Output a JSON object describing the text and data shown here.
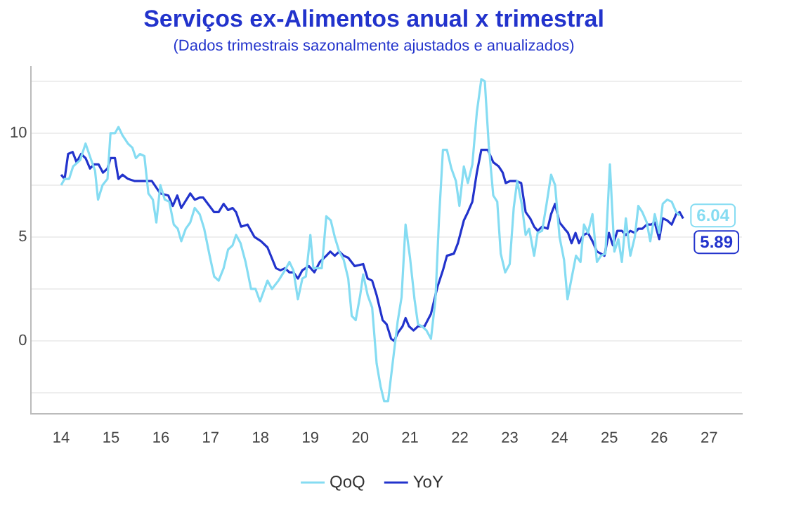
{
  "chart_data": {
    "type": "line",
    "title": "Serviços ex-Alimentos anual x trimestral",
    "subtitle": "(Dados trimestrais sazonalmente ajustados e anualizados)",
    "xlim": [
      13.4,
      27.66
    ],
    "xticks": [
      14,
      15,
      16,
      17,
      18,
      19,
      20,
      21,
      22,
      23,
      24,
      25,
      26,
      27
    ],
    "ylim": [
      -3.5,
      13.2
    ],
    "yticks": [
      {
        "value": -2.5,
        "label": null
      },
      0,
      {
        "value": 2.5,
        "label": null
      },
      5,
      {
        "value": 7.5,
        "label": null
      },
      10,
      {
        "value": 12.5,
        "label": null
      }
    ],
    "grid": "y",
    "legend": "bottom",
    "marker": "none",
    "line_style": "solid",
    "annotations": [
      {
        "text": "6.04",
        "x": 26.41,
        "y": 6.04
      },
      {
        "text": "5.89",
        "x": 26.48,
        "y": 5.89
      }
    ],
    "series": [
      {
        "name": "QoQ",
        "color": "#85dcf2",
        "x": [
          14.0,
          14.07,
          14.16,
          14.24,
          14.38,
          14.49,
          14.59,
          14.68,
          14.74,
          14.83,
          14.93,
          14.99,
          15.08,
          15.15,
          15.23,
          15.34,
          15.43,
          15.5,
          15.58,
          15.67,
          15.75,
          15.84,
          15.91,
          15.99,
          16.08,
          16.17,
          16.26,
          16.34,
          16.41,
          16.5,
          16.59,
          16.68,
          16.78,
          16.87,
          16.98,
          17.07,
          17.16,
          17.26,
          17.35,
          17.44,
          17.51,
          17.6,
          17.7,
          17.81,
          17.9,
          17.99,
          18.14,
          18.23,
          18.36,
          18.49,
          18.58,
          18.66,
          18.75,
          18.84,
          18.91,
          19.0,
          19.06,
          19.14,
          19.23,
          19.32,
          19.41,
          19.49,
          19.58,
          19.67,
          19.76,
          19.83,
          19.91,
          20.0,
          20.06,
          20.15,
          20.24,
          20.33,
          20.41,
          20.48,
          20.56,
          20.65,
          20.75,
          20.83,
          20.91,
          21.0,
          21.09,
          21.16,
          21.24,
          21.33,
          21.42,
          21.51,
          21.58,
          21.66,
          21.74,
          21.83,
          21.92,
          21.99,
          22.08,
          22.16,
          22.25,
          22.34,
          22.43,
          22.5,
          22.58,
          22.67,
          22.75,
          22.82,
          22.91,
          23.0,
          23.08,
          23.15,
          23.24,
          23.32,
          23.39,
          23.49,
          23.56,
          23.65,
          23.74,
          23.83,
          23.91,
          24.0,
          24.09,
          24.16,
          24.24,
          24.33,
          24.42,
          24.49,
          24.57,
          24.66,
          24.75,
          24.83,
          24.92,
          25.01,
          25.1,
          25.18,
          25.25,
          25.33,
          25.42,
          25.51,
          25.58,
          25.66,
          25.75,
          25.82,
          25.91,
          26.0,
          26.07,
          26.16,
          26.25,
          26.34,
          26.41
        ],
        "values": [
          7.5,
          7.8,
          7.8,
          8.4,
          8.7,
          9.5,
          8.8,
          8.2,
          6.8,
          7.5,
          7.8,
          10.0,
          10.0,
          10.3,
          9.9,
          9.5,
          9.3,
          8.8,
          9.0,
          8.9,
          7.1,
          6.8,
          5.7,
          7.5,
          6.8,
          6.7,
          5.6,
          5.4,
          4.8,
          5.4,
          5.7,
          6.4,
          6.1,
          5.4,
          4.1,
          3.1,
          2.9,
          3.5,
          4.4,
          4.6,
          5.1,
          4.7,
          3.8,
          2.5,
          2.5,
          1.9,
          2.9,
          2.5,
          2.9,
          3.4,
          3.8,
          3.4,
          2.0,
          3.0,
          3.1,
          5.1,
          3.5,
          3.5,
          3.5,
          6.0,
          5.8,
          5.0,
          4.3,
          3.9,
          3.0,
          1.2,
          1.0,
          2.2,
          3.2,
          2.2,
          1.6,
          -1.1,
          -2.2,
          -2.9,
          -2.9,
          -1.1,
          0.9,
          2.1,
          5.6,
          4.0,
          2.0,
          0.8,
          0.7,
          0.5,
          0.1,
          2.0,
          5.8,
          9.2,
          9.2,
          8.3,
          7.7,
          6.5,
          8.4,
          7.6,
          8.5,
          11.0,
          12.6,
          12.5,
          9.4,
          7.0,
          6.7,
          4.2,
          3.3,
          3.7,
          6.4,
          7.7,
          6.6,
          5.1,
          5.4,
          4.1,
          5.2,
          5.3,
          6.6,
          8.0,
          7.5,
          5.0,
          3.9,
          2.0,
          3.0,
          4.1,
          3.8,
          5.6,
          5.2,
          6.1,
          3.8,
          4.1,
          4.2,
          8.5,
          4.3,
          4.9,
          3.8,
          5.9,
          4.1,
          5.0,
          6.5,
          6.2,
          5.7,
          4.8,
          6.1,
          5.2,
          6.6,
          6.8,
          6.7,
          6.2,
          6.04
        ]
      },
      {
        "name": "YoY",
        "color": "#2233cc",
        "x": [
          14.0,
          14.07,
          14.14,
          14.23,
          14.31,
          14.4,
          14.49,
          14.58,
          14.66,
          14.75,
          14.84,
          14.93,
          14.99,
          15.08,
          15.15,
          15.23,
          15.34,
          15.47,
          15.82,
          15.99,
          16.15,
          16.24,
          16.33,
          16.41,
          16.59,
          16.68,
          16.78,
          16.85,
          17.07,
          17.16,
          17.26,
          17.35,
          17.44,
          17.51,
          17.61,
          17.74,
          17.88,
          18.01,
          18.14,
          18.31,
          18.4,
          18.49,
          18.58,
          18.66,
          18.75,
          18.84,
          18.97,
          19.08,
          19.19,
          19.32,
          19.4,
          19.49,
          19.58,
          19.67,
          19.76,
          19.89,
          20.06,
          20.15,
          20.24,
          20.33,
          20.45,
          20.53,
          20.62,
          20.68,
          20.76,
          20.85,
          20.91,
          20.98,
          21.07,
          21.16,
          21.29,
          21.42,
          21.55,
          21.66,
          21.74,
          21.88,
          21.96,
          22.08,
          22.16,
          22.25,
          22.34,
          22.43,
          22.56,
          22.67,
          22.78,
          22.86,
          22.92,
          23.01,
          23.13,
          23.23,
          23.32,
          23.41,
          23.49,
          23.56,
          23.65,
          23.76,
          23.83,
          23.91,
          24.0,
          24.1,
          24.17,
          24.24,
          24.32,
          24.39,
          24.48,
          24.57,
          24.66,
          24.75,
          24.83,
          24.9,
          24.99,
          25.07,
          25.16,
          25.25,
          25.33,
          25.42,
          25.51,
          25.58,
          25.66,
          25.75,
          25.84,
          25.91,
          26.0,
          26.07,
          26.16,
          26.25,
          26.34,
          26.41,
          26.48
        ],
        "values": [
          8.0,
          7.8,
          9.0,
          9.1,
          8.6,
          9.0,
          8.8,
          8.3,
          8.5,
          8.5,
          8.1,
          8.3,
          8.8,
          8.8,
          7.8,
          8.0,
          7.8,
          7.7,
          7.7,
          7.1,
          7.0,
          6.5,
          7.0,
          6.4,
          7.1,
          6.8,
          6.9,
          6.9,
          6.2,
          6.2,
          6.6,
          6.3,
          6.4,
          6.2,
          5.5,
          5.6,
          5.0,
          4.8,
          4.5,
          3.5,
          3.4,
          3.5,
          3.3,
          3.3,
          3.0,
          3.4,
          3.6,
          3.3,
          3.8,
          4.1,
          4.3,
          4.1,
          4.3,
          4.1,
          4.0,
          3.6,
          3.7,
          3.0,
          2.9,
          2.2,
          1.0,
          0.8,
          0.1,
          0.0,
          0.4,
          0.7,
          1.1,
          0.7,
          0.5,
          0.7,
          0.7,
          1.3,
          2.6,
          3.4,
          4.1,
          4.2,
          4.7,
          5.8,
          6.2,
          6.7,
          8.1,
          9.2,
          9.2,
          8.6,
          8.4,
          8.1,
          7.6,
          7.7,
          7.7,
          7.6,
          6.2,
          5.9,
          5.5,
          5.3,
          5.5,
          5.4,
          6.1,
          6.6,
          5.7,
          5.4,
          5.2,
          4.7,
          5.2,
          4.7,
          5.1,
          5.2,
          4.8,
          4.3,
          4.2,
          4.1,
          5.2,
          4.6,
          5.3,
          5.3,
          5.1,
          5.3,
          5.2,
          5.4,
          5.4,
          5.6,
          5.6,
          5.7,
          4.9,
          5.9,
          5.8,
          5.6,
          6.1,
          6.2,
          5.89
        ]
      }
    ]
  }
}
